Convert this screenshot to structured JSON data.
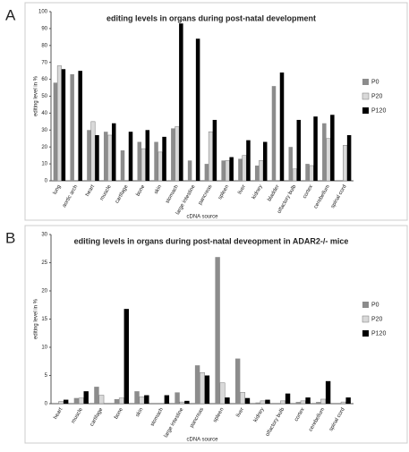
{
  "chart_data": [
    {
      "type": "bar",
      "label": "A",
      "title": "editing levels in organs during post-natal development",
      "x_label": "cDNA source",
      "y_label": "editing level in %",
      "categories": [
        "lung",
        "aortic arch",
        "heart",
        "muscle",
        "cartilage",
        "bone",
        "skin",
        "stomach",
        "large intestine",
        "pancreas",
        "spleen",
        "liver",
        "kidney",
        "bladder",
        "olfactory bulb",
        "cortex",
        "cerebellum",
        "spinal cord"
      ],
      "series": [
        {
          "name": "P0",
          "color": "#8c8c8c",
          "values": [
            58,
            63,
            30,
            29,
            18,
            23,
            23,
            31,
            12,
            10,
            12,
            13,
            9,
            56,
            20,
            10,
            34,
            null
          ]
        },
        {
          "name": "P20",
          "color": "#d9d9d9",
          "values": [
            68,
            null,
            35,
            27,
            null,
            19,
            17,
            32,
            null,
            29,
            12,
            15,
            12,
            null,
            7,
            9,
            25,
            21
          ]
        },
        {
          "name": "P120",
          "color": "#000000",
          "values": [
            66,
            65,
            27,
            34,
            29,
            30,
            26,
            93,
            84,
            36,
            14,
            24,
            23,
            64,
            36,
            38,
            39,
            27
          ]
        }
      ],
      "ylim": [
        0,
        100
      ],
      "yticks": [
        0,
        10,
        20,
        30,
        40,
        50,
        60,
        70,
        80,
        90,
        100
      ],
      "legend": "right"
    },
    {
      "type": "bar",
      "label": "B",
      "title": "editing levels in organs during post-natal deveopment in ADAR2-/- mice",
      "x_label": "cDNA source",
      "y_label": "editing level in %",
      "categories": [
        "heart",
        "muscle",
        "cartilage",
        "bone",
        "skin",
        "stomach",
        "large intestine",
        "pancreas",
        "spleen",
        "liver",
        "kidney",
        "olfactory bulb",
        "cortex",
        "cerebellum",
        "spinal cord"
      ],
      "series": [
        {
          "name": "P0",
          "color": "#8c8c8c",
          "values": [
            0,
            1,
            3,
            0.8,
            2.2,
            0,
            2,
            6.8,
            26,
            8,
            0.2,
            0,
            0.3,
            0.3,
            0
          ]
        },
        {
          "name": "P20",
          "color": "#d9d9d9",
          "values": [
            0.4,
            1,
            1.5,
            1,
            1.2,
            0,
            0.3,
            5.5,
            3.7,
            2,
            0.5,
            0.5,
            0.5,
            0.8,
            0.3
          ]
        },
        {
          "name": "P120",
          "color": "#000000",
          "values": [
            0.7,
            2.2,
            0,
            16.8,
            1.5,
            1.5,
            0.5,
            5,
            1.1,
            1,
            0.7,
            1.8,
            1.1,
            4,
            1.1
          ]
        }
      ],
      "ylim": [
        0,
        30
      ],
      "yticks": [
        0,
        5,
        10,
        15,
        20,
        25,
        30
      ],
      "legend": "right"
    }
  ]
}
